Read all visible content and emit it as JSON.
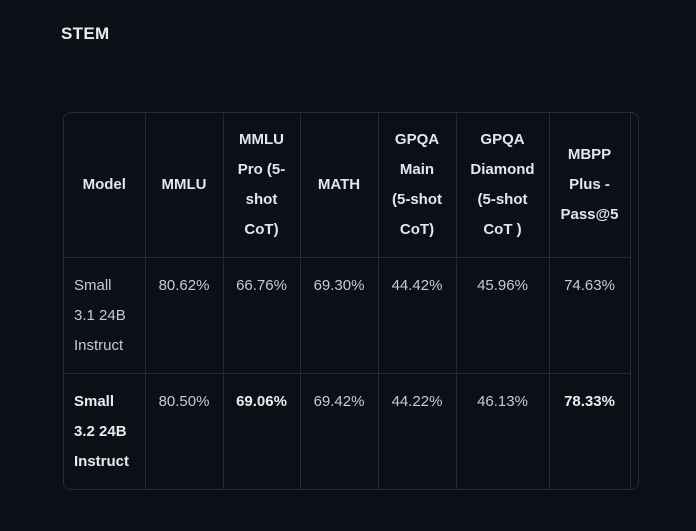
{
  "title": "STEM",
  "colors": {
    "page_background": "#0c0f16",
    "border": "#242b3a",
    "text_regular": "#c7cbd4",
    "text_bold": "#e9ebf1",
    "heading": "#e9ebf0"
  },
  "table": {
    "columns": [
      {
        "label": "Model"
      },
      {
        "label": "MMLU"
      },
      {
        "label": "MMLU\nPro (5-\nshot\nCoT)"
      },
      {
        "label": "MATH"
      },
      {
        "label": "GPQA\nMain\n(5-shot\nCoT)"
      },
      {
        "label": "GPQA\nDiamond\n(5-shot\nCoT )"
      },
      {
        "label": "MBPP\nPlus -\nPass@5"
      }
    ],
    "rows": [
      {
        "model": {
          "text": "Small\n3.1 24B\nInstruct",
          "bold": false
        },
        "values": [
          {
            "text": "80.62%",
            "bold": false
          },
          {
            "text": "66.76%",
            "bold": false
          },
          {
            "text": "69.30%",
            "bold": false
          },
          {
            "text": "44.42%",
            "bold": false
          },
          {
            "text": "45.96%",
            "bold": false
          },
          {
            "text": "74.63%",
            "bold": false
          }
        ]
      },
      {
        "model": {
          "text": "Small\n3.2 24B\nInstruct",
          "bold": true
        },
        "values": [
          {
            "text": "80.50%",
            "bold": false
          },
          {
            "text": "69.06%",
            "bold": true
          },
          {
            "text": "69.42%",
            "bold": false
          },
          {
            "text": "44.22%",
            "bold": false
          },
          {
            "text": "46.13%",
            "bold": false
          },
          {
            "text": "78.33%",
            "bold": true
          }
        ]
      }
    ]
  }
}
